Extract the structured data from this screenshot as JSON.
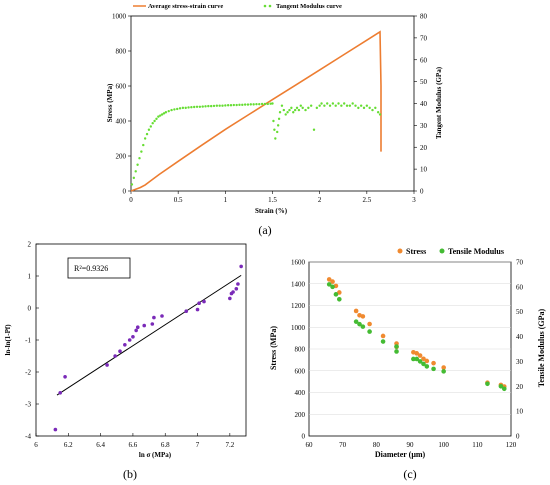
{
  "chart_data": [
    {
      "panel": "(a)",
      "type": "line",
      "xlabel": "Strain (%)",
      "ylabel": "Stress (MPa)",
      "y2label": "Tangent Modulus (GPa)",
      "xlim": [
        0,
        3
      ],
      "ylim": [
        0,
        1000
      ],
      "y2lim": [
        0,
        80
      ],
      "xticks": [
        "0",
        "0.5",
        "1",
        "1.5",
        "2",
        "2.5",
        "3"
      ],
      "yticks": [
        "0",
        "200",
        "400",
        "600",
        "800",
        "1000"
      ],
      "y2ticks": [
        "0",
        "10",
        "20",
        "30",
        "40",
        "50",
        "60",
        "70",
        "80"
      ],
      "legend_position": "top-center",
      "colors": {
        "stress": "#ed7d31",
        "modulus": "#66dd33"
      },
      "series": [
        {
          "name": "Average stress-strain curve",
          "axis": "left",
          "style": "line",
          "x": [
            0,
            0.05,
            0.1,
            0.15,
            0.2,
            0.25,
            0.3,
            0.5,
            0.75,
            1.0,
            1.25,
            1.5,
            1.75,
            2.0,
            2.25,
            2.5,
            2.64,
            2.65,
            2.65
          ],
          "y": [
            0,
            10,
            20,
            35,
            55,
            75,
            95,
            170,
            262,
            352,
            437,
            522,
            607,
            692,
            777,
            862,
            910,
            600,
            225
          ]
        },
        {
          "name": "Tangent Modulus curve",
          "axis": "right",
          "style": "scatter",
          "x": [
            0.01,
            0.03,
            0.05,
            0.07,
            0.09,
            0.11,
            0.13,
            0.15,
            0.17,
            0.19,
            0.21,
            0.23,
            0.25,
            0.27,
            0.29,
            0.31,
            0.33,
            0.35,
            0.37,
            0.4,
            0.43,
            0.46,
            0.49,
            0.52,
            0.55,
            0.58,
            0.61,
            0.64,
            0.67,
            0.7,
            0.73,
            0.76,
            0.79,
            0.82,
            0.85,
            0.88,
            0.91,
            0.94,
            0.97,
            1.0,
            1.03,
            1.06,
            1.09,
            1.12,
            1.15,
            1.18,
            1.21,
            1.24,
            1.27,
            1.3,
            1.33,
            1.36,
            1.39,
            1.42,
            1.45,
            1.48,
            1.5,
            1.51,
            1.52,
            1.53,
            1.55,
            1.56,
            1.57,
            1.58,
            1.6,
            1.62,
            1.64,
            1.66,
            1.68,
            1.7,
            1.72,
            1.74,
            1.76,
            1.78,
            1.8,
            1.82,
            1.85,
            1.88,
            1.91,
            1.94,
            1.97,
            2.0,
            2.02,
            2.05,
            2.08,
            2.11,
            2.14,
            2.17,
            2.2,
            2.23,
            2.26,
            2.29,
            2.32,
            2.35,
            2.38,
            2.41,
            2.44,
            2.47,
            2.5,
            2.53,
            2.56,
            2.59,
            2.62,
            2.64
          ],
          "y": [
            3,
            6,
            9,
            12,
            15,
            18,
            21,
            24,
            26,
            28,
            29.5,
            31,
            32,
            33,
            34,
            34.5,
            35,
            35.5,
            36,
            36.5,
            37,
            37.3,
            37.5,
            37.8,
            38,
            38,
            38.2,
            38.3,
            38.4,
            38.5,
            38.5,
            38.6,
            38.7,
            38.8,
            38.8,
            38.9,
            39,
            39,
            39,
            39.1,
            39.2,
            39.2,
            39.3,
            39.3,
            39.4,
            39.4,
            39.5,
            39.5,
            39.6,
            39.6,
            39.7,
            39.7,
            39.8,
            39.8,
            39.8,
            39.9,
            40,
            32,
            28,
            24,
            27,
            30,
            33,
            36,
            39,
            37,
            35,
            36,
            37,
            38,
            36,
            37,
            38,
            37,
            39,
            38,
            37,
            38,
            39,
            28,
            38,
            39,
            40,
            39,
            40,
            39,
            40,
            39,
            40,
            39,
            40,
            39,
            39,
            40,
            39,
            38,
            39,
            38,
            39,
            38,
            37,
            38,
            36,
            35
          ]
        }
      ]
    },
    {
      "panel": "(b)",
      "type": "scatter",
      "xlabel": "ln σ (MPa)",
      "ylabel": "ln-ln(1-Pf)",
      "xlim": [
        6,
        7.3
      ],
      "ylim": [
        -4,
        2
      ],
      "xticks": [
        "6",
        "6.2",
        "6.4",
        "6.6",
        "6.8",
        "7",
        "7.2"
      ],
      "yticks": [
        "-4",
        "-3",
        "-2",
        "-1",
        "0",
        "1",
        "2"
      ],
      "annotation": "R²=0.9326",
      "colors": {
        "points": "#7a2ab8",
        "fit": "#000000"
      },
      "points_x": [
        6.12,
        6.15,
        6.18,
        6.44,
        6.49,
        6.52,
        6.55,
        6.58,
        6.6,
        6.62,
        6.63,
        6.67,
        6.72,
        6.73,
        6.78,
        6.93,
        7.0,
        7.01,
        7.04,
        7.2,
        7.21,
        7.22,
        7.24,
        7.25,
        7.27
      ],
      "points_y": [
        -3.8,
        -2.65,
        -2.15,
        -1.78,
        -1.5,
        -1.35,
        -1.15,
        -1.0,
        -0.9,
        -0.7,
        -0.6,
        -0.55,
        -0.5,
        -0.3,
        -0.25,
        -0.1,
        -0.05,
        0.15,
        0.2,
        0.3,
        0.45,
        0.5,
        0.6,
        0.75,
        1.3
      ],
      "fit": {
        "x": [
          6.13,
          7.27
        ],
        "y": [
          -2.72,
          1.02
        ]
      }
    },
    {
      "panel": "(c)",
      "type": "scatter",
      "xlabel": "Diameter (μm)",
      "ylabel": "Stress (MPa)",
      "y2label": "Tensile Modulus (GPa)",
      "xlim": [
        60,
        120
      ],
      "ylim": [
        0,
        1600
      ],
      "y2lim": [
        0,
        70
      ],
      "xticks": [
        "60",
        "70",
        "80",
        "90",
        "100",
        "110",
        "120"
      ],
      "yticks": [
        "0",
        "200",
        "400",
        "600",
        "800",
        "1000",
        "1200",
        "1400",
        "1600"
      ],
      "y2ticks": [
        "0",
        "10",
        "20",
        "30",
        "40",
        "50",
        "60",
        "70"
      ],
      "legend_position": "top-right",
      "colors": {
        "stress": "#f08a30",
        "modulus": "#44bb33"
      },
      "series": [
        {
          "name": "Stress",
          "axis": "left",
          "x": [
            66,
            67,
            68,
            69,
            74,
            75,
            76,
            78,
            82,
            86,
            86,
            91,
            92,
            93,
            94,
            95,
            97,
            100,
            113,
            117,
            118
          ],
          "y": [
            1440,
            1420,
            1380,
            1320,
            1150,
            1110,
            1100,
            1030,
            920,
            850,
            820,
            770,
            760,
            740,
            710,
            690,
            670,
            630,
            490,
            470,
            455
          ]
        },
        {
          "name": "Tensile Modulus",
          "axis": "right",
          "x": [
            66,
            67,
            68,
            69,
            74,
            75,
            76,
            78,
            82,
            86,
            86,
            91,
            92,
            93,
            94,
            95,
            97,
            100,
            113,
            117,
            118
          ],
          "y": [
            61,
            60,
            57,
            55,
            46,
            45,
            44,
            42,
            38,
            36,
            34,
            31,
            31,
            30,
            29,
            28,
            27,
            26,
            21,
            20,
            19
          ]
        }
      ]
    }
  ]
}
